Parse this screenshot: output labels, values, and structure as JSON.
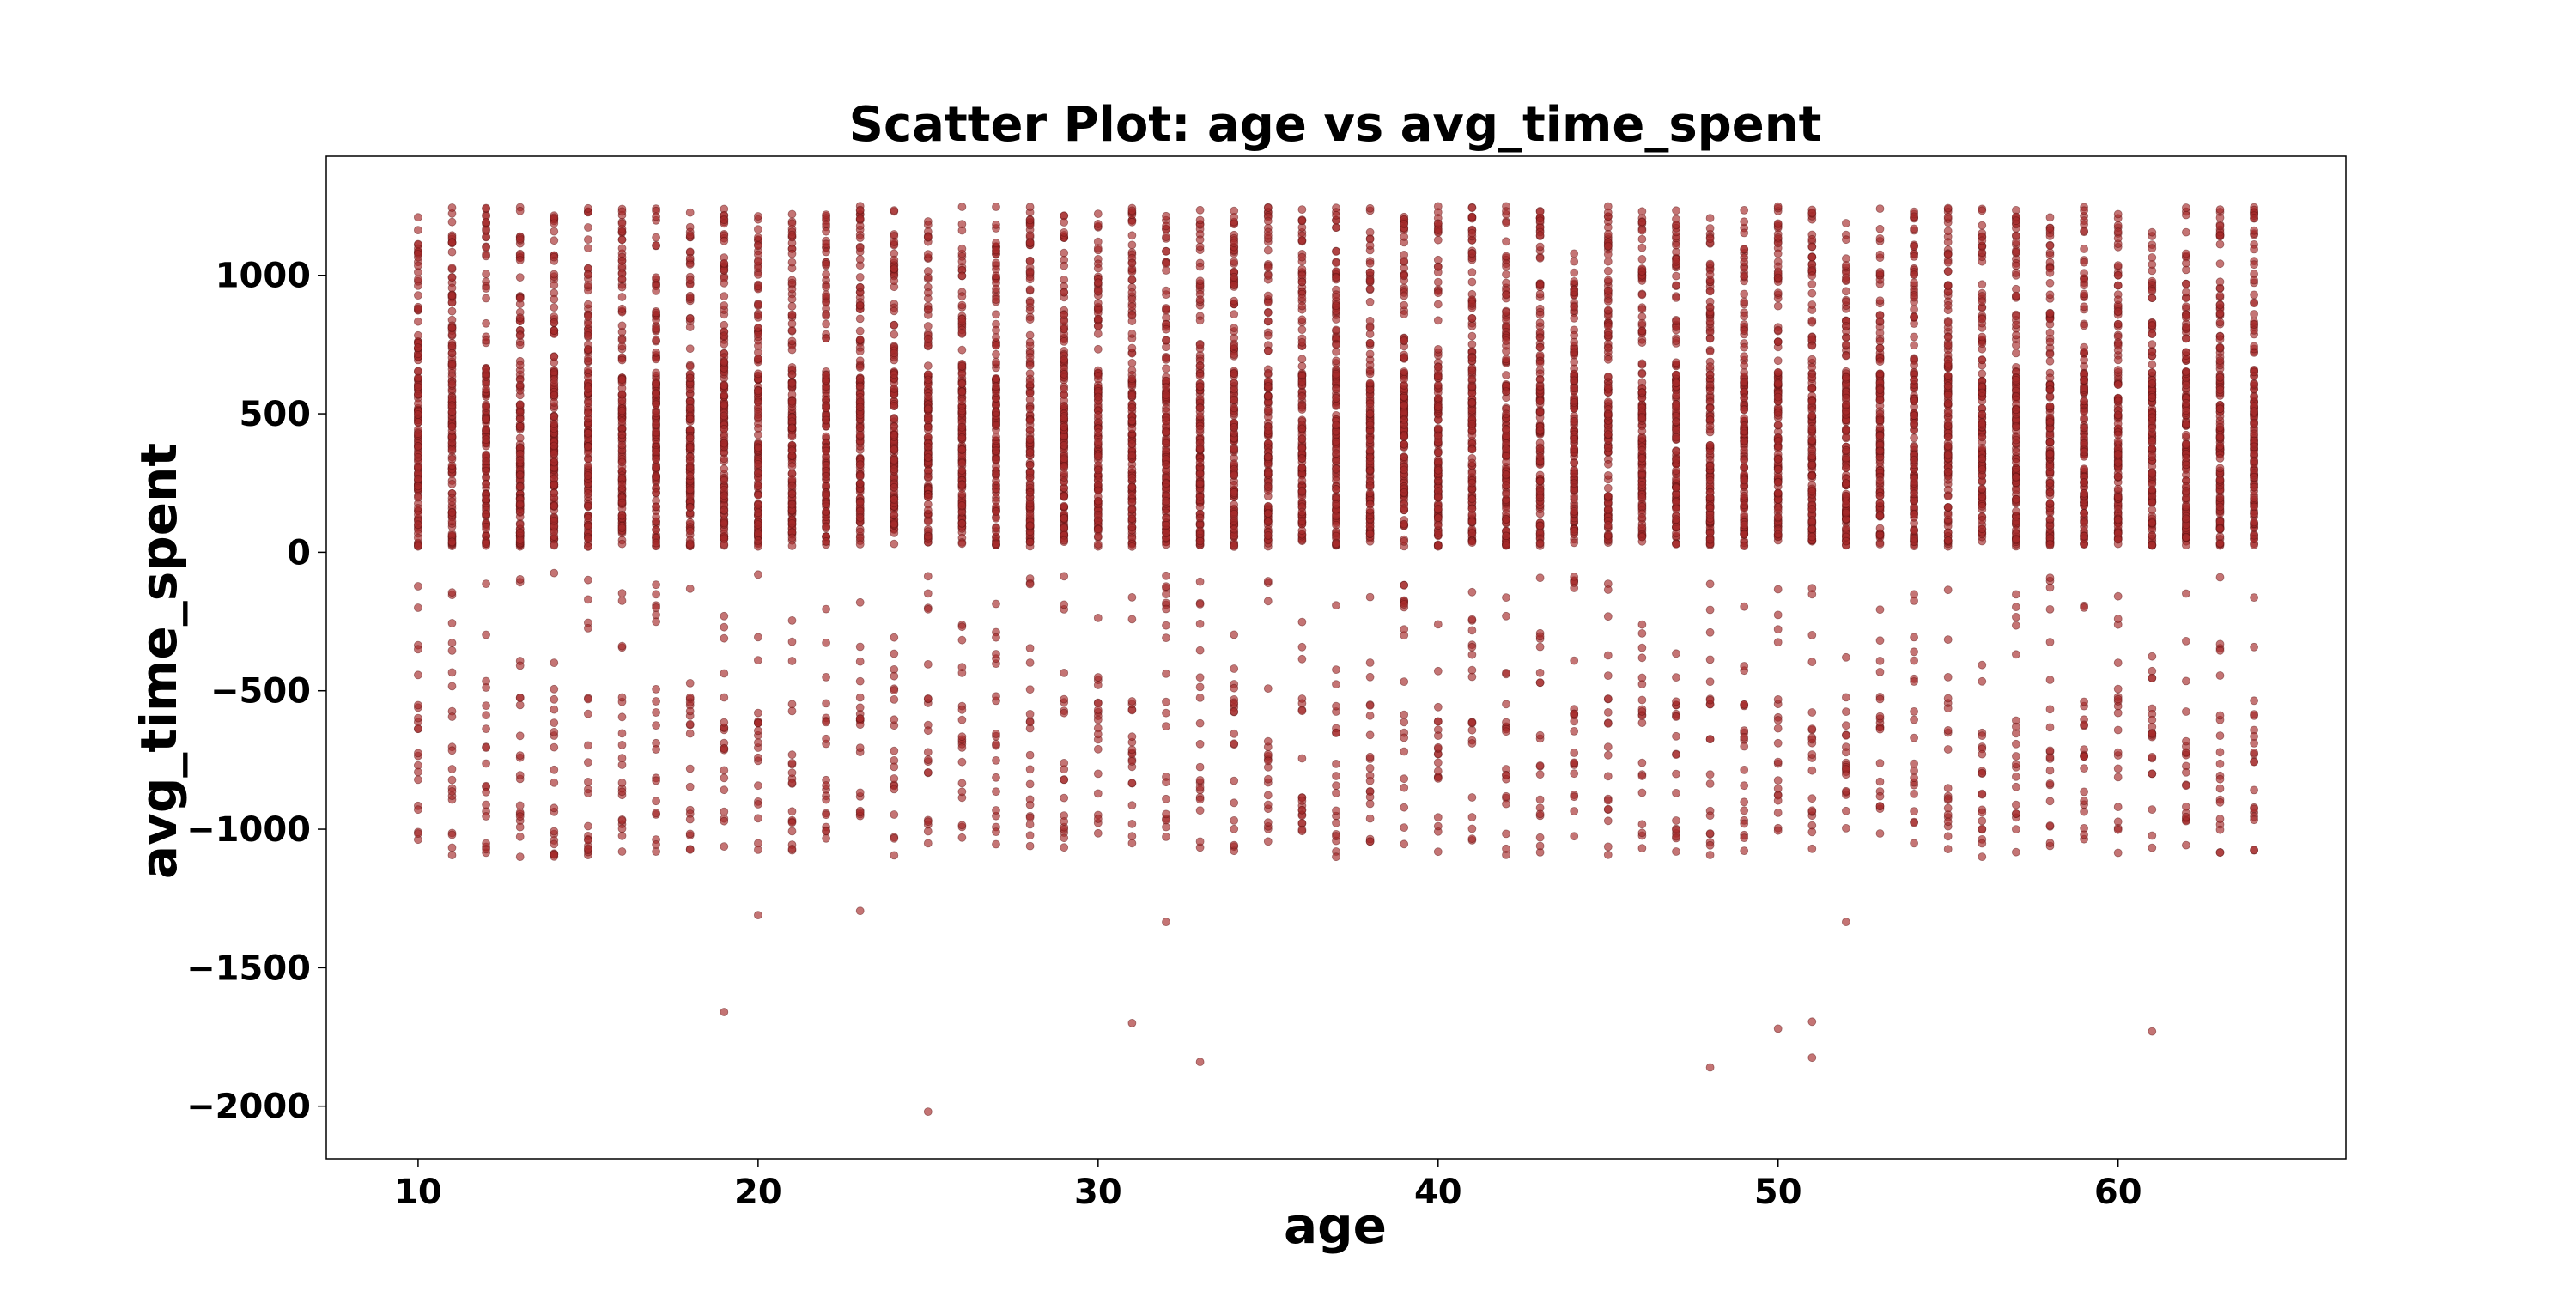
{
  "chart_data": {
    "type": "scatter",
    "title": "Scatter Plot: age vs avg_time_spent",
    "xlabel": "age",
    "ylabel": "avg_time_spent",
    "xlim": [
      7.3,
      66.7
    ],
    "ylim": [
      -2190,
      1430
    ],
    "xticks": [
      10,
      20,
      30,
      40,
      50,
      60
    ],
    "yticks": [
      -2000,
      -1500,
      -1000,
      -500,
      0,
      500,
      1000
    ],
    "grid": false,
    "legend": "none",
    "colors": {
      "point_fill": "#a52a2a",
      "point_stroke": "#5a0f0f",
      "axis": "#000000",
      "background": "#ffffff"
    },
    "ages": [
      10,
      11,
      12,
      13,
      14,
      15,
      16,
      17,
      18,
      19,
      20,
      21,
      22,
      23,
      24,
      25,
      26,
      27,
      28,
      29,
      30,
      31,
      32,
      33,
      34,
      35,
      36,
      37,
      38,
      39,
      40,
      41,
      42,
      43,
      44,
      45,
      46,
      47,
      48,
      49,
      50,
      51,
      52,
      53,
      54,
      55,
      56,
      57,
      58,
      59,
      60,
      61,
      62,
      63,
      64
    ],
    "main_cluster": {
      "min": 20,
      "max": 1250,
      "dense_upper": 650,
      "points_per_age": 130
    },
    "negative_points_per_age": 20,
    "series": [
      {
        "x": [
          19,
          20,
          23,
          25,
          31,
          32,
          33,
          48,
          50,
          51,
          51,
          52,
          61,
          14,
          15,
          16,
          32,
          44,
          10,
          11
        ],
        "y": [
          -1660,
          -1310,
          -1295,
          -2020,
          -1700,
          -1335,
          -1840,
          -1860,
          -1720,
          -1695,
          -1825,
          -1335,
          -1730,
          -75,
          -100,
          -175,
          -85,
          -110,
          -350,
          -355
        ]
      }
    ]
  }
}
